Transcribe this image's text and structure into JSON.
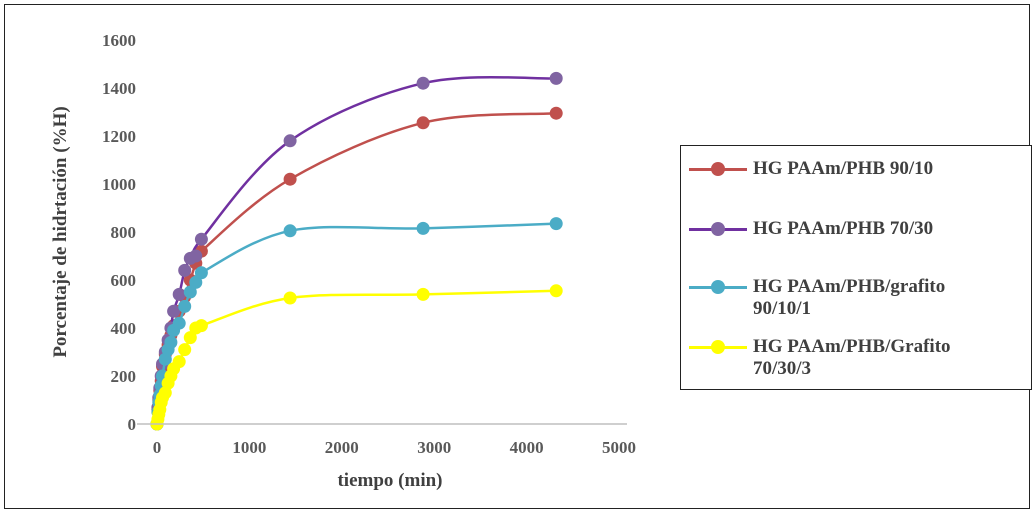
{
  "chart_data": {
    "type": "line",
    "title": "",
    "xlabel": "tiempo (min)",
    "ylabel": "Porcentaje de hidrtación (%H)",
    "xlim": [
      0,
      5000
    ],
    "ylim": [
      0,
      1600
    ],
    "xticks": [
      "0",
      "1000",
      "2000",
      "3000",
      "4000",
      "5000"
    ],
    "yticks": [
      "0",
      "200",
      "400",
      "600",
      "800",
      "1000",
      "1200",
      "1400",
      "1600"
    ],
    "grid": false,
    "legend_position": "right",
    "series": [
      {
        "name": "HG PAAm/PHB 90/10",
        "color": "#C0504D",
        "x": [
          0,
          10,
          20,
          30,
          45,
          60,
          90,
          120,
          150,
          180,
          240,
          300,
          360,
          420,
          480,
          1440,
          2880,
          4320
        ],
        "y": [
          0,
          60,
          100,
          140,
          180,
          240,
          290,
          330,
          370,
          410,
          470,
          530,
          600,
          670,
          720,
          1020,
          1255,
          1295
        ]
      },
      {
        "name": "HG PAAm/PHB 70/30",
        "color": "#8064A2",
        "x": [
          0,
          10,
          20,
          30,
          45,
          60,
          90,
          120,
          150,
          180,
          240,
          300,
          360,
          420,
          480,
          1440,
          2880,
          4320
        ],
        "y": [
          0,
          70,
          110,
          150,
          200,
          250,
          300,
          350,
          400,
          470,
          540,
          640,
          690,
          700,
          770,
          1180,
          1420,
          1440
        ]
      },
      {
        "name": "HG PAAm/PHB/grafito 90/10/1",
        "color": "#4BACC6",
        "x": [
          0,
          10,
          20,
          30,
          45,
          60,
          90,
          120,
          150,
          180,
          240,
          300,
          360,
          420,
          480,
          1440,
          2880,
          4320
        ],
        "y": [
          0,
          50,
          90,
          120,
          160,
          200,
          270,
          310,
          340,
          390,
          420,
          490,
          550,
          590,
          630,
          805,
          815,
          835
        ]
      },
      {
        "name": "HG PAAm/PHB/Grafito 70/30/3",
        "color": "#FFFF00",
        "x": [
          0,
          10,
          20,
          30,
          45,
          60,
          90,
          120,
          150,
          180,
          240,
          300,
          360,
          420,
          480,
          1440,
          2880,
          4320
        ],
        "y": [
          0,
          20,
          40,
          60,
          90,
          110,
          130,
          170,
          200,
          230,
          260,
          310,
          360,
          400,
          410,
          525,
          540,
          555
        ]
      }
    ]
  },
  "legend": {
    "items": [
      {
        "label": "HG PAAm/PHB 90/10",
        "color": "#C0504D"
      },
      {
        "label": "HG PAAm/PHB 70/30",
        "color": "#8064A2"
      },
      {
        "label": "HG PAAm/PHB/grafito\n90/10/1",
        "color": "#4BACC6"
      },
      {
        "label": "HG PAAm/PHB/Grafito\n70/30/3",
        "color": "#FFFF00"
      }
    ]
  }
}
